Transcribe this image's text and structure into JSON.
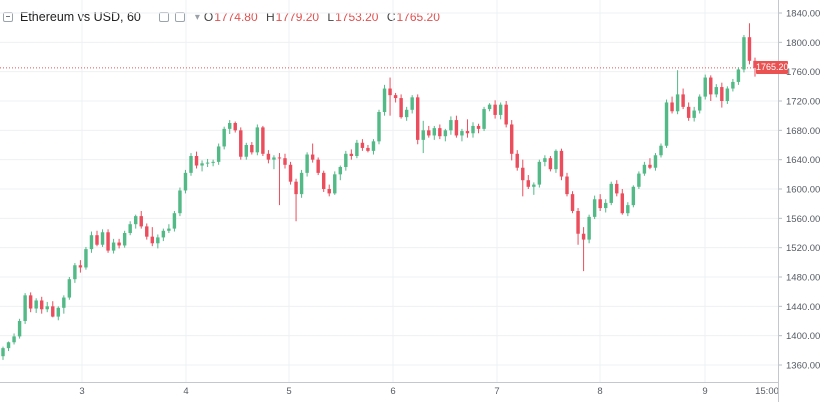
{
  "chart_data": {
    "type": "candlestick",
    "symbol": "Ethereum vs USD, 60",
    "ohlc_legend": {
      "O": "1774.80",
      "H": "1779.20",
      "L": "1753.20",
      "C": "1765.20"
    },
    "last_price_label": "1765.20",
    "ylim": [
      1340,
      1850
    ],
    "y_ticks": [
      "1840.00",
      "1800.00",
      "1760.00",
      "1720.00",
      "1680.00",
      "1640.00",
      "1600.00",
      "1560.00",
      "1520.00",
      "1480.00",
      "1440.00",
      "1400.00",
      "1360.00"
    ],
    "x_ticks": [
      "3",
      "4",
      "5",
      "6",
      "7",
      "8",
      "9",
      "15:00"
    ],
    "grid": true,
    "colors": {
      "up": "#53b987",
      "down": "#eb4d5c",
      "last_price": "#ea5151"
    },
    "candles": [
      [
        1372,
        1385,
        1367,
        1383
      ],
      [
        1383,
        1392,
        1379,
        1391
      ],
      [
        1391,
        1403,
        1388,
        1399
      ],
      [
        1399,
        1423,
        1396,
        1420
      ],
      [
        1420,
        1458,
        1416,
        1455
      ],
      [
        1455,
        1459,
        1432,
        1437
      ],
      [
        1437,
        1451,
        1431,
        1448
      ],
      [
        1448,
        1453,
        1430,
        1436
      ],
      [
        1436,
        1446,
        1432,
        1440
      ],
      [
        1440,
        1447,
        1425,
        1426
      ],
      [
        1426,
        1440,
        1421,
        1438
      ],
      [
        1438,
        1455,
        1430,
        1452
      ],
      [
        1452,
        1480,
        1449,
        1477
      ],
      [
        1477,
        1499,
        1472,
        1496
      ],
      [
        1496,
        1503,
        1486,
        1493
      ],
      [
        1493,
        1521,
        1490,
        1518
      ],
      [
        1518,
        1542,
        1513,
        1537
      ],
      [
        1537,
        1543,
        1522,
        1524
      ],
      [
        1524,
        1545,
        1521,
        1541
      ],
      [
        1541,
        1545,
        1513,
        1516
      ],
      [
        1516,
        1532,
        1512,
        1527
      ],
      [
        1527,
        1532,
        1519,
        1523
      ],
      [
        1523,
        1543,
        1520,
        1540
      ],
      [
        1540,
        1556,
        1537,
        1552
      ],
      [
        1552,
        1565,
        1546,
        1563
      ],
      [
        1563,
        1570,
        1546,
        1549
      ],
      [
        1549,
        1553,
        1531,
        1535
      ],
      [
        1535,
        1548,
        1522,
        1526
      ],
      [
        1526,
        1538,
        1519,
        1534
      ],
      [
        1534,
        1546,
        1529,
        1543
      ],
      [
        1543,
        1552,
        1540,
        1546
      ],
      [
        1546,
        1570,
        1542,
        1567
      ],
      [
        1567,
        1602,
        1563,
        1598
      ],
      [
        1598,
        1626,
        1594,
        1622
      ],
      [
        1622,
        1649,
        1618,
        1645
      ],
      [
        1645,
        1651,
        1628,
        1632
      ],
      [
        1632,
        1639,
        1624,
        1635
      ],
      [
        1635,
        1641,
        1630,
        1636
      ],
      [
        1636,
        1640,
        1631,
        1637
      ],
      [
        1637,
        1662,
        1633,
        1658
      ],
      [
        1658,
        1685,
        1654,
        1682
      ],
      [
        1682,
        1694,
        1675,
        1690
      ],
      [
        1690,
        1692,
        1677,
        1680
      ],
      [
        1680,
        1684,
        1640,
        1644
      ],
      [
        1644,
        1663,
        1640,
        1660
      ],
      [
        1660,
        1664,
        1647,
        1650
      ],
      [
        1650,
        1688,
        1646,
        1684
      ],
      [
        1684,
        1686,
        1645,
        1648
      ],
      [
        1648,
        1653,
        1635,
        1640
      ],
      [
        1640,
        1646,
        1627,
        1643
      ],
      [
        1643,
        1649,
        1578,
        1642
      ],
      [
        1642,
        1648,
        1628,
        1633
      ],
      [
        1633,
        1637,
        1606,
        1610
      ],
      [
        1610,
        1614,
        1556,
        1593
      ],
      [
        1593,
        1626,
        1588,
        1622
      ],
      [
        1622,
        1650,
        1617,
        1647
      ],
      [
        1647,
        1662,
        1636,
        1640
      ],
      [
        1640,
        1643,
        1619,
        1622
      ],
      [
        1622,
        1625,
        1596,
        1600
      ],
      [
        1600,
        1606,
        1590,
        1594
      ],
      [
        1594,
        1624,
        1592,
        1620
      ],
      [
        1620,
        1632,
        1612,
        1630
      ],
      [
        1630,
        1652,
        1625,
        1648
      ],
      [
        1648,
        1654,
        1640,
        1645
      ],
      [
        1645,
        1667,
        1642,
        1663
      ],
      [
        1663,
        1668,
        1652,
        1656
      ],
      [
        1656,
        1660,
        1650,
        1652
      ],
      [
        1652,
        1668,
        1647,
        1665
      ],
      [
        1665,
        1708,
        1661,
        1705
      ],
      [
        1705,
        1742,
        1700,
        1737
      ],
      [
        1737,
        1752,
        1700,
        1728
      ],
      [
        1728,
        1731,
        1718,
        1724
      ],
      [
        1724,
        1729,
        1696,
        1698
      ],
      [
        1698,
        1712,
        1693,
        1708
      ],
      [
        1708,
        1728,
        1703,
        1725
      ],
      [
        1725,
        1729,
        1661,
        1667
      ],
      [
        1667,
        1693,
        1649,
        1680
      ],
      [
        1680,
        1686,
        1670,
        1673
      ],
      [
        1673,
        1686,
        1667,
        1683
      ],
      [
        1683,
        1688,
        1668,
        1672
      ],
      [
        1672,
        1682,
        1665,
        1680
      ],
      [
        1680,
        1699,
        1674,
        1694
      ],
      [
        1694,
        1700,
        1670,
        1673
      ],
      [
        1673,
        1682,
        1665,
        1679
      ],
      [
        1679,
        1695,
        1670,
        1676
      ],
      [
        1676,
        1691,
        1670,
        1686
      ],
      [
        1686,
        1689,
        1676,
        1682
      ],
      [
        1682,
        1712,
        1679,
        1709
      ],
      [
        1709,
        1717,
        1706,
        1715
      ],
      [
        1715,
        1721,
        1696,
        1701
      ],
      [
        1701,
        1718,
        1695,
        1715
      ],
      [
        1715,
        1720,
        1684,
        1688
      ],
      [
        1688,
        1694,
        1639,
        1648
      ],
      [
        1648,
        1653,
        1625,
        1629
      ],
      [
        1629,
        1640,
        1590,
        1612
      ],
      [
        1612,
        1619,
        1600,
        1603
      ],
      [
        1603,
        1609,
        1592,
        1606
      ],
      [
        1606,
        1640,
        1602,
        1637
      ],
      [
        1637,
        1646,
        1631,
        1642
      ],
      [
        1642,
        1645,
        1624,
        1627
      ],
      [
        1627,
        1654,
        1622,
        1652
      ],
      [
        1652,
        1655,
        1612,
        1617
      ],
      [
        1617,
        1622,
        1590,
        1593
      ],
      [
        1593,
        1597,
        1567,
        1570
      ],
      [
        1570,
        1574,
        1524,
        1539
      ],
      [
        1539,
        1548,
        1488,
        1531
      ],
      [
        1531,
        1565,
        1526,
        1562
      ],
      [
        1562,
        1591,
        1559,
        1586
      ],
      [
        1586,
        1593,
        1570,
        1574
      ],
      [
        1574,
        1586,
        1568,
        1581
      ],
      [
        1581,
        1610,
        1578,
        1607
      ],
      [
        1607,
        1612,
        1590,
        1594
      ],
      [
        1594,
        1600,
        1565,
        1567
      ],
      [
        1567,
        1582,
        1563,
        1578
      ],
      [
        1578,
        1605,
        1575,
        1603
      ],
      [
        1603,
        1624,
        1600,
        1621
      ],
      [
        1621,
        1637,
        1618,
        1633
      ],
      [
        1633,
        1642,
        1627,
        1629
      ],
      [
        1629,
        1649,
        1625,
        1646
      ],
      [
        1646,
        1662,
        1643,
        1659
      ],
      [
        1659,
        1722,
        1656,
        1718
      ],
      [
        1718,
        1726,
        1703,
        1706
      ],
      [
        1706,
        1762,
        1702,
        1729
      ],
      [
        1729,
        1737,
        1709,
        1712
      ],
      [
        1712,
        1718,
        1693,
        1697
      ],
      [
        1697,
        1712,
        1692,
        1707
      ],
      [
        1707,
        1729,
        1703,
        1726
      ],
      [
        1726,
        1756,
        1722,
        1752
      ],
      [
        1752,
        1755,
        1720,
        1729
      ],
      [
        1729,
        1743,
        1725,
        1739
      ],
      [
        1739,
        1745,
        1711,
        1720
      ],
      [
        1720,
        1740,
        1716,
        1737
      ],
      [
        1737,
        1750,
        1733,
        1746
      ],
      [
        1746,
        1766,
        1742,
        1763
      ],
      [
        1763,
        1810,
        1759,
        1807
      ],
      [
        1807,
        1826,
        1770,
        1774.8
      ],
      [
        1774.8,
        1779.2,
        1753.2,
        1765.2
      ]
    ]
  }
}
